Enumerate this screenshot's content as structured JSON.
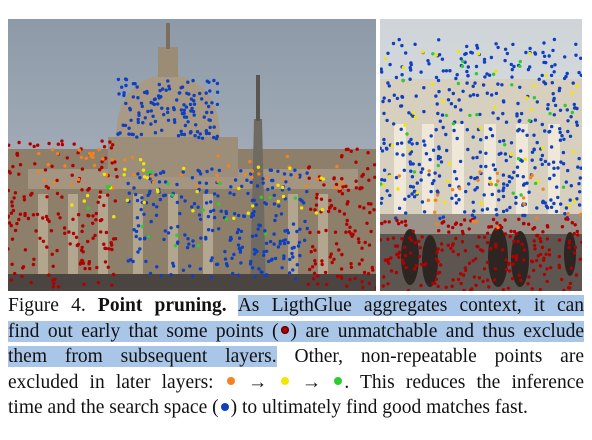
{
  "figure": {
    "label": "Figure 4.",
    "title": "Point pruning.",
    "caption_segments": {
      "line1_highlight": "As LigthGlue aggregates context, it can",
      "line2_highlight_a": "find out early that some points (",
      "line2_highlight_b": ") are unmatchable and thus exclude",
      "line3_highlight": "them from subsequent layers.",
      "line3_rest": " Other, non-repeatable points are",
      "line4_a": "excluded in later layers: ",
      "arrow1": " → ",
      "arrow2": " → ",
      "line4_end": ". This reduces the inference",
      "line5_a": "time and the search space (",
      "line5_b": ") to ultimately find good matches fast."
    }
  },
  "legend_colors": {
    "pruned_early": "#b00000",
    "later_orange": "#f58220",
    "later_yellow": "#f2e600",
    "later_green": "#2ecc2e",
    "search_space_blue": "#1040c0"
  }
}
